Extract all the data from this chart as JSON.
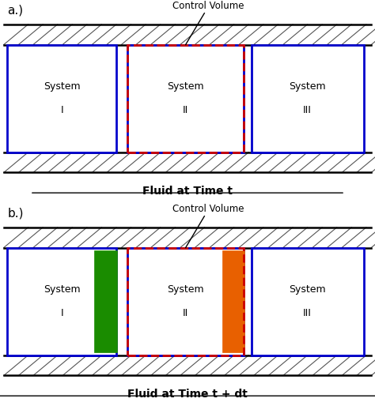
{
  "fig_width": 4.74,
  "fig_height": 5.14,
  "bg_color": "#ffffff",
  "panel_a_label": "a.)",
  "panel_b_label": "b.)",
  "title_a": "Fluid at Time t",
  "title_b": "Fluid at Time t + dt",
  "control_volume_label": "Control Volume",
  "blue_color": "#0000cc",
  "red_dashed_color": "#cc0000",
  "green_color": "#1a8c00",
  "orange_color": "#e86000",
  "hatch_color": "#555555",
  "text_color": "#000000",
  "sys_labels": [
    "System\n\nI",
    "System\n\nII",
    "System\n\nIII"
  ]
}
